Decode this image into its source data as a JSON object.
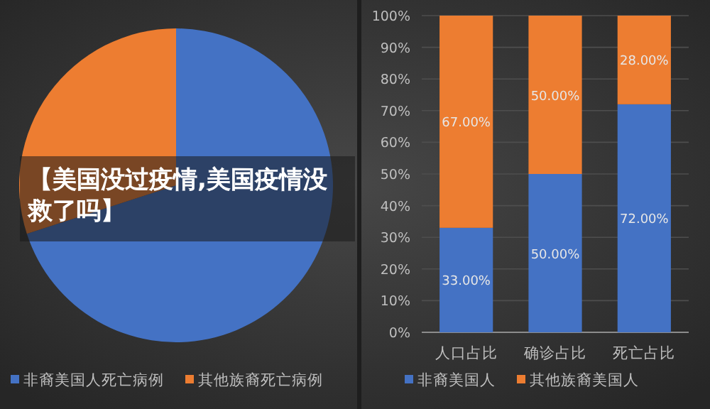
{
  "chart_data": [
    {
      "type": "pie",
      "categories": [
        "非裔美国人死亡病例",
        "其他族裔死亡病例"
      ],
      "values": [
        70,
        30
      ],
      "colors": [
        "#4472c4",
        "#ed7d31"
      ],
      "legend": "bottom",
      "annotations": [
        "【美国没过疫情,美国疫情没救了吗】"
      ]
    },
    {
      "type": "bar",
      "stacked": true,
      "categories": [
        "人口占比",
        "确诊占比",
        "死亡占比"
      ],
      "series": [
        {
          "name": "非裔美国人",
          "color": "#4472c4",
          "values": [
            33,
            50,
            72
          ],
          "value_labels": [
            "33.00%",
            "50.00%",
            "72.00%"
          ]
        },
        {
          "name": "其他族裔美国人",
          "color": "#ed7d31",
          "values": [
            67,
            50,
            28
          ],
          "value_labels": [
            "67.00%",
            "50.00%",
            "28.00%"
          ]
        }
      ],
      "ylim": [
        0,
        100
      ],
      "yticks": [
        {
          "value": 0,
          "label": "0%"
        },
        {
          "value": 10,
          "label": "10%"
        },
        {
          "value": 20,
          "label": "20%"
        },
        {
          "value": 30,
          "label": "30%"
        },
        {
          "value": 40,
          "label": "40%"
        },
        {
          "value": 50,
          "label": "50%"
        },
        {
          "value": 60,
          "label": "60%"
        },
        {
          "value": 70,
          "label": "70%"
        },
        {
          "value": 80,
          "label": "80%"
        },
        {
          "value": 90,
          "label": "90%"
        },
        {
          "value": 100,
          "label": "100%"
        }
      ],
      "grid": "y",
      "legend": "bottom"
    }
  ]
}
